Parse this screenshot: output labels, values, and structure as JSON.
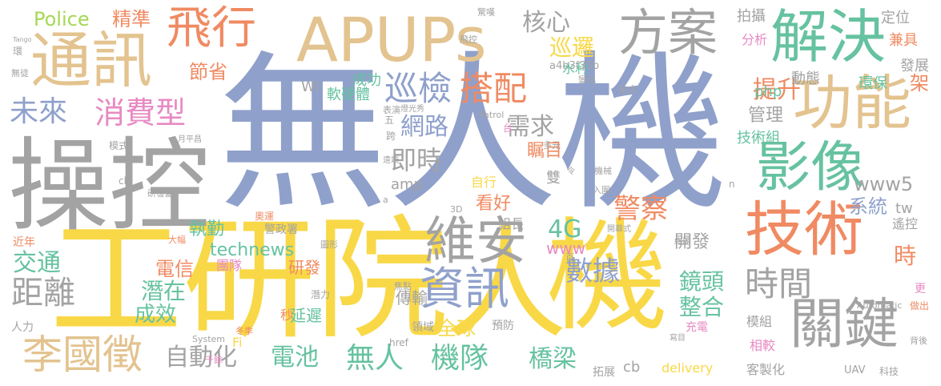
{
  "palette": {
    "blue": "#8fa0cb",
    "gold": "#f9d847",
    "gray": "#a3a3a3",
    "orange": "#f08a62",
    "green": "#66c2a0",
    "tan": "#e3c38f",
    "pink": "#e78ac3",
    "lime": "#a6d854"
  },
  "words": [
    {
      "id": "w1",
      "text": "無人機"
    },
    {
      "id": "w2",
      "text": "工研院"
    },
    {
      "id": "w3",
      "text": "機"
    },
    {
      "id": "w4",
      "text": "人"
    },
    {
      "id": "w5",
      "text": "操控"
    },
    {
      "id": "w6",
      "text": "APUPs"
    },
    {
      "id": "w7",
      "text": "通訊"
    },
    {
      "id": "w8",
      "text": "飛行"
    },
    {
      "id": "w9",
      "text": "方案"
    },
    {
      "id": "w10",
      "text": "解決"
    },
    {
      "id": "w11",
      "text": "功能"
    },
    {
      "id": "w12",
      "text": "技術"
    },
    {
      "id": "w13",
      "text": "影像"
    },
    {
      "id": "w14",
      "text": "關鍵"
    },
    {
      "id": "w15",
      "text": "維安"
    },
    {
      "id": "w16",
      "text": "資訊"
    },
    {
      "id": "w17",
      "text": "李國徵"
    },
    {
      "id": "w18",
      "text": "時間"
    },
    {
      "id": "w19",
      "text": "巡檢"
    },
    {
      "id": "w20",
      "text": "搭配"
    },
    {
      "id": "w21",
      "text": "消費型"
    },
    {
      "id": "w22",
      "text": "未來"
    },
    {
      "id": "w23",
      "text": "距離"
    },
    {
      "id": "w24",
      "text": "警察"
    },
    {
      "id": "w25",
      "text": "數據"
    },
    {
      "id": "w26",
      "text": "網路"
    },
    {
      "id": "w27",
      "text": "需求"
    },
    {
      "id": "w28",
      "text": "即時"
    },
    {
      "id": "w29",
      "text": "提升"
    },
    {
      "id": "w30",
      "text": "核心"
    },
    {
      "id": "w31",
      "text": "巡邏"
    },
    {
      "id": "w32",
      "text": "節省"
    },
    {
      "id": "w33",
      "text": "Police"
    },
    {
      "id": "w34",
      "text": "精準"
    },
    {
      "id": "w35",
      "text": "交通"
    },
    {
      "id": "w36",
      "text": "潛在"
    },
    {
      "id": "w37",
      "text": "成效"
    },
    {
      "id": "w38",
      "text": "電信"
    },
    {
      "id": "w39",
      "text": "自動化"
    },
    {
      "id": "w40",
      "text": "電池"
    },
    {
      "id": "w41",
      "text": "無人"
    },
    {
      "id": "w42",
      "text": "機隊"
    },
    {
      "id": "w43",
      "text": "橋梁"
    },
    {
      "id": "w44",
      "text": "全球"
    },
    {
      "id": "w45",
      "text": "鏡頭"
    },
    {
      "id": "w46",
      "text": "整合"
    },
    {
      "id": "w47",
      "text": "4G"
    },
    {
      "id": "w48",
      "text": "www5"
    },
    {
      "id": "w49",
      "text": "系統"
    },
    {
      "id": "w50",
      "text": "管理"
    },
    {
      "id": "w51",
      "text": "technews"
    },
    {
      "id": "w52",
      "text": "瞩目"
    },
    {
      "id": "w53",
      "text": "看好"
    },
    {
      "id": "w54",
      "text": "執勤"
    },
    {
      "id": "w55",
      "text": "開發"
    },
    {
      "id": "w56",
      "text": "研發"
    },
    {
      "id": "w57",
      "text": "延遲"
    },
    {
      "id": "w58",
      "text": "傳輸"
    },
    {
      "id": "w59",
      "text": "www"
    },
    {
      "id": "w60",
      "text": "時"
    },
    {
      "id": "w61",
      "text": "架"
    },
    {
      "id": "w62",
      "text": "動態"
    },
    {
      "id": "w63",
      "text": "拍攝"
    },
    {
      "id": "w64",
      "text": "定位"
    },
    {
      "id": "w65",
      "text": "分析"
    },
    {
      "id": "w66",
      "text": "兼具"
    },
    {
      "id": "w67",
      "text": "環保"
    },
    {
      "id": "w68",
      "text": "發展"
    },
    {
      "id": "w69",
      "text": "技術組"
    },
    {
      "id": "w70",
      "text": "php"
    },
    {
      "id": "w71",
      "text": "水利"
    },
    {
      "id": "w72",
      "text": "成功"
    },
    {
      "id": "w73",
      "text": "軟硬體"
    },
    {
      "id": "w74",
      "text": "Wi"
    },
    {
      "id": "w75",
      "text": "a4b3f35b"
    },
    {
      "id": "w76",
      "text": "amp"
    },
    {
      "id": "w77",
      "text": "自行"
    },
    {
      "id": "w78",
      "text": "雙"
    },
    {
      "id": "w79",
      "text": "組長"
    },
    {
      "id": "w80",
      "text": "團隊"
    },
    {
      "id": "w81",
      "text": "警政署"
    },
    {
      "id": "w82",
      "text": "遙控"
    },
    {
      "id": "w83",
      "text": "tw"
    },
    {
      "id": "w84",
      "text": "模組"
    },
    {
      "id": "w85",
      "text": "相較"
    },
    {
      "id": "w86",
      "text": "充電"
    },
    {
      "id": "w87",
      "text": "客製化"
    },
    {
      "id": "w88",
      "text": "delivery"
    },
    {
      "id": "w89",
      "text": "cb"
    },
    {
      "id": "w90",
      "text": "Fi"
    },
    {
      "id": "w91",
      "text": "人力"
    },
    {
      "id": "w92",
      "text": "近年"
    },
    {
      "id": "w93",
      "text": "秒"
    },
    {
      "id": "w94",
      "text": "預防"
    },
    {
      "id": "w95",
      "text": "領域"
    },
    {
      "id": "w96",
      "text": "拓展"
    },
    {
      "id": "w97",
      "text": "UAV"
    },
    {
      "id": "w98",
      "text": "科技"
    },
    {
      "id": "w99",
      "text": "更"
    },
    {
      "id": "w100",
      "text": "做出"
    },
    {
      "id": "w101",
      "text": "背後"
    },
    {
      "id": "w102",
      "text": "Automatic"
    },
    {
      "id": "w103",
      "text": "href"
    },
    {
      "id": "w104",
      "text": "焦點"
    },
    {
      "id": "w105",
      "text": "奧運"
    },
    {
      "id": "w106",
      "text": "圖形"
    },
    {
      "id": "w107",
      "text": "研發處"
    },
    {
      "id": "w108",
      "text": "模式"
    },
    {
      "id": "w109",
      "text": "大幅"
    },
    {
      "id": "w110",
      "text": "潛力"
    },
    {
      "id": "w111",
      "text": "System"
    },
    {
      "id": "w112",
      "text": "千餘"
    },
    {
      "id": "w113",
      "text": "冬季"
    },
    {
      "id": "w114",
      "text": "ck"
    },
    {
      "id": "w115",
      "text": "無徒"
    },
    {
      "id": "w116",
      "text": "環"
    },
    {
      "id": "w117",
      "text": "航太"
    },
    {
      "id": "w118",
      "text": "變化"
    },
    {
      "id": "w119",
      "text": "入圍"
    },
    {
      "id": "w120",
      "text": "機械"
    },
    {
      "id": "w121",
      "text": "n"
    },
    {
      "id": "w122",
      "text": "多元"
    },
    {
      "id": "w123",
      "text": "Patrol"
    },
    {
      "id": "w124",
      "text": "表演"
    },
    {
      "id": "w125",
      "text": "燈光秀"
    },
    {
      "id": "w126",
      "text": "月平昌"
    },
    {
      "id": "w127",
      "text": "遠端"
    },
    {
      "id": "w128",
      "text": "飛控"
    },
    {
      "id": "w129",
      "text": "驚嘆"
    },
    {
      "id": "w130",
      "text": "開幕式"
    },
    {
      "id": "w131",
      "text": "絢麗"
    },
    {
      "id": "w132",
      "text": "寫目"
    },
    {
      "id": "w133",
      "text": "五"
    },
    {
      "id": "w134",
      "text": "跨"
    },
    {
      "id": "w135",
      "text": "台"
    },
    {
      "id": "w136",
      "text": "令"
    },
    {
      "id": "w137",
      "text": "3D"
    },
    {
      "id": "w138",
      "text": "百"
    },
    {
      "id": "w139",
      "text": "a"
    },
    {
      "id": "w140",
      "text": "Tango"
    }
  ]
}
